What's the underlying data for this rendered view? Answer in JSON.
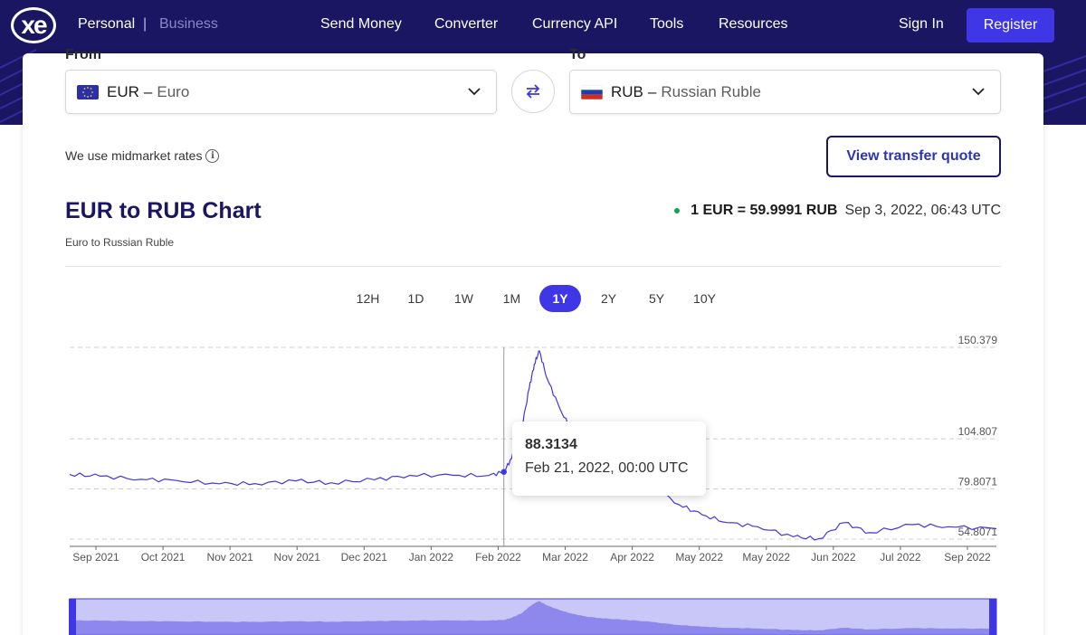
{
  "header": {
    "logo": "xe",
    "personal": "Personal",
    "separator": "|",
    "business": "Business",
    "nav": [
      "Send Money",
      "Converter",
      "Currency API",
      "Tools",
      "Resources"
    ],
    "sign_in": "Sign In",
    "register": "Register",
    "colors": {
      "bar": "#1a1662",
      "register_bg": "#3f36e5"
    }
  },
  "converter": {
    "from_label": "From",
    "to_label": "To",
    "from": {
      "code": "EUR",
      "dash": "–",
      "name": "Euro",
      "flag_icon": "eu-flag-icon"
    },
    "to": {
      "code": "RUB",
      "dash": "–",
      "name": "Russian Ruble",
      "flag_icon": "russia-flag-icon"
    },
    "swap_icon": "swap-arrows-icon",
    "midmarket_text": "We use midmarket rates",
    "info_icon": "i",
    "quote_button": "View transfer quote"
  },
  "chart_header": {
    "title": "EUR to RUB Chart",
    "subtitle": "Euro to Russian Ruble",
    "rate": "1 EUR = 59.9991 RUB",
    "timestamp": "Sep 3, 2022, 06:43 UTC",
    "status_color": "#16a34a"
  },
  "periods": {
    "items": [
      "12H",
      "1D",
      "1W",
      "1M",
      "1Y",
      "2Y",
      "5Y",
      "10Y"
    ],
    "active": "1Y"
  },
  "tooltip": {
    "value": "88.3134",
    "date": "Feb 21, 2022, 00:00 UTC"
  },
  "chart_data": {
    "type": "line",
    "series": [
      {
        "x": [
          "2021-09-03",
          "2021-09-15",
          "2021-10-01",
          "2021-10-15",
          "2021-11-01",
          "2021-11-15",
          "2021-12-01",
          "2021-12-15",
          "2022-01-01",
          "2022-01-15",
          "2022-02-01",
          "2022-02-15",
          "2022-02-21",
          "2022-02-24",
          "2022-02-28",
          "2022-03-03",
          "2022-03-05",
          "2022-03-07",
          "2022-03-10",
          "2022-03-15",
          "2022-03-20",
          "2022-03-25",
          "2022-04-01",
          "2022-04-10",
          "2022-04-20",
          "2022-05-01",
          "2022-05-10",
          "2022-05-20",
          "2022-06-01",
          "2022-06-15",
          "2022-06-25",
          "2022-07-05",
          "2022-07-15",
          "2022-08-01",
          "2022-08-15",
          "2022-09-03"
        ],
        "y": [
          87.0,
          86.2,
          84.6,
          84.0,
          82.4,
          82.5,
          83.8,
          82.9,
          84.4,
          86.6,
          86.6,
          86.5,
          88.3134,
          95.0,
          110.0,
          130.0,
          142.0,
          148.6,
          135.0,
          120.0,
          108.0,
          100.0,
          93.0,
          89.0,
          82.0,
          72.0,
          67.0,
          63.0,
          61.0,
          56.0,
          55.0,
          63.0,
          58.0,
          62.0,
          61.0,
          60.0
        ]
      }
    ],
    "x_tick_labels": [
      "Sep 2021",
      "Oct 2021",
      "Nov 2021",
      "Nov 2021",
      "Dec 2021",
      "Jan 2022",
      "Feb 2022",
      "Mar 2022",
      "Apr 2022",
      "May 2022",
      "May 2022",
      "Jun 2022",
      "Jul 2022",
      "Sep 2022"
    ],
    "y_tick_labels": [
      "150.379",
      "104.807",
      "79.8071",
      "54.8071"
    ],
    "y_ticks": [
      150.379,
      104.807,
      79.8071,
      54.8071
    ],
    "ylim": [
      54.8071,
      150.379
    ],
    "grid": true,
    "hover": {
      "x": "2022-02-21",
      "y": 88.3134
    },
    "line_color": "#3f36e5",
    "navigator_color": "#c9c7f7"
  }
}
